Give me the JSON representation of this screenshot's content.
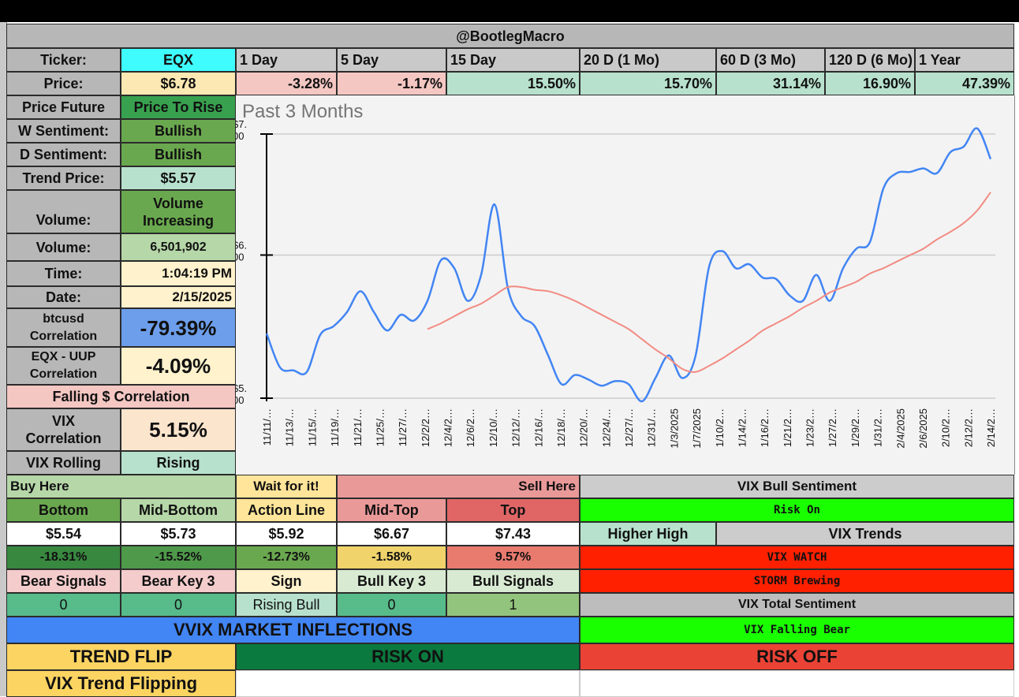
{
  "header": {
    "title": "@BootlegMacro"
  },
  "ticker": {
    "label": "Ticker:",
    "value": "EQX"
  },
  "periods": [
    "1 Day",
    "5 Day",
    "15 Day",
    "20 D (1 Mo)",
    "60 D (3 Mo)",
    "120 D (6 Mo)",
    "1 Year"
  ],
  "price": {
    "label": "Price:",
    "value": "$6.78",
    "changes": [
      "-3.28%",
      "-1.17%",
      "15.50%",
      "15.70%",
      "31.14%",
      "16.90%",
      "47.39%"
    ]
  },
  "left_panel": {
    "price_future": {
      "label": "Price Future",
      "value": "Price To Rise"
    },
    "w_sentiment": {
      "label": "W Sentiment:",
      "value": "Bullish"
    },
    "d_sentiment": {
      "label": "D Sentiment:",
      "value": "Bullish"
    },
    "trend_price": {
      "label": "Trend Price:",
      "value": "$5.57"
    },
    "volume_trend": {
      "label": "Volume:",
      "value": "Volume Increasing"
    },
    "volume": {
      "label": "Volume:",
      "value": "6,501,902"
    },
    "time": {
      "label": "Time:",
      "value": "1:04:19 PM"
    },
    "date": {
      "label": "Date:",
      "value": "2/15/2025"
    },
    "btc_corr": {
      "label": "btcusd Correlation",
      "value": "-79.39%"
    },
    "uup_corr": {
      "label": "EQX - UUP Correlation",
      "value": "-4.09%"
    },
    "falling_dollar": {
      "label": "Falling $ Correlation"
    },
    "vix_corr": {
      "label": "VIX Correlation",
      "value": "5.15%"
    },
    "vix_rolling": {
      "label": "VIX Rolling",
      "value": "Rising"
    }
  },
  "levels": {
    "buy_here": "Buy Here",
    "wait": "Wait for it!",
    "sell_here": "Sell Here",
    "headers": [
      "Bottom",
      "Mid-Bottom",
      "Action Line",
      "Mid-Top",
      "Top"
    ],
    "prices": [
      "$5.54",
      "$5.73",
      "$5.92",
      "$6.67",
      "$7.43"
    ],
    "pcts": [
      "-18.31%",
      "-15.52%",
      "-12.73%",
      "-1.58%",
      "9.57%"
    ]
  },
  "signals": {
    "headers": [
      "Bear Signals",
      "Bear Key 3",
      "Sign",
      "Bull Key 3",
      "Bull Signals"
    ],
    "values": [
      "0",
      "0",
      "Rising Bull",
      "0",
      "1"
    ]
  },
  "vvix": {
    "title": "VVIX MARKET INFLECTIONS",
    "trend_flip": "TREND FLIP",
    "risk_on": "RISK ON",
    "risk_off": "RISK OFF",
    "vix_trend_flipping": "VIX Trend Flipping"
  },
  "vix_panel": {
    "bull_sentiment_label": "VIX Bull Sentiment",
    "bull_sentiment_value": "Risk On",
    "higher_high": "Higher High",
    "trends_label": "VIX Trends",
    "watch": "VIX WATCH",
    "storm": "STORM Brewing",
    "total_label": "VIX Total Sentiment",
    "total_value": "VIX Falling Bear"
  },
  "colors": {
    "header_gray": "#b7b7b7",
    "ticker_cyan": "#3ffcff",
    "price_yellow": "#fce8b2",
    "neg_pink": "#f4c7c3",
    "pos_green": "#b7e1cd",
    "bullish_green": "#6aa84f",
    "dark_green": "#38a14f",
    "price_line": "#4285f4",
    "trend_line": "#f28b82",
    "risk_on_bright": "#1aff00",
    "vix_red": "#ff2000",
    "vvix_blue": "#4285f4",
    "risk_off_red": "#ea4335",
    "trend_flip_yellow": "#fcd462",
    "risk_on_dark": "#0b7a3e"
  },
  "chart_data": {
    "type": "line",
    "title": "Past 3 Months",
    "y_scale": "log",
    "ylim": [
      5.0,
      7.0
    ],
    "y_ticks": [
      "$7.00",
      "$6.00",
      "$5.00"
    ],
    "y_tick_values": [
      7,
      6,
      5
    ],
    "grid": true,
    "x_labels": [
      "11/11/…",
      "11/13/…",
      "11/15/…",
      "11/19/…",
      "11/21/…",
      "11/25/…",
      "11/27/…",
      "12/2/2…",
      "12/4/2…",
      "12/6/2…",
      "12/10/…",
      "12/12/…",
      "12/16/…",
      "12/18/…",
      "12/20/…",
      "12/24/…",
      "12/27/…",
      "12/31/…",
      "1/3/2025",
      "1/7/2025",
      "1/10/2…",
      "1/14/2…",
      "1/16/2…",
      "1/21/2…",
      "1/23/2…",
      "1/27/2…",
      "1/29/2…",
      "1/31/2…",
      "2/4/2025",
      "2/6/2025",
      "2/10/2…",
      "2/12/2…",
      "2/14/2…"
    ],
    "series": [
      {
        "color": "#4285f4",
        "values": [
          5.43,
          5.2,
          5.18,
          5.17,
          5.42,
          5.48,
          5.58,
          5.73,
          5.58,
          5.45,
          5.56,
          5.52,
          5.66,
          5.96,
          5.9,
          5.66,
          5.85,
          6.4,
          5.75,
          5.55,
          5.48,
          5.28,
          5.09,
          5.15,
          5.12,
          5.08,
          5.11,
          5.09,
          4.98,
          5.13,
          5.28,
          5.13,
          5.28,
          5.91,
          6.03,
          5.9,
          5.93,
          5.83,
          5.82,
          5.7,
          5.66,
          5.85,
          5.66,
          5.9,
          6.05,
          6.1,
          6.53,
          6.66,
          6.67,
          6.7,
          6.66,
          6.84,
          6.89,
          7.05,
          6.78
        ]
      },
      {
        "color": "#f28b82",
        "values": [
          null,
          null,
          null,
          null,
          null,
          null,
          null,
          null,
          null,
          null,
          null,
          null,
          5.46,
          5.5,
          5.55,
          5.6,
          5.64,
          5.7,
          5.76,
          5.76,
          5.74,
          5.73,
          5.7,
          5.66,
          5.61,
          5.56,
          5.51,
          5.46,
          5.39,
          5.32,
          5.26,
          5.19,
          5.17,
          5.21,
          5.26,
          5.32,
          5.38,
          5.45,
          5.5,
          5.55,
          5.61,
          5.66,
          5.72,
          5.76,
          5.8,
          5.86,
          5.9,
          5.95,
          6.0,
          6.05,
          6.12,
          6.18,
          6.25,
          6.35,
          6.5
        ]
      }
    ]
  }
}
